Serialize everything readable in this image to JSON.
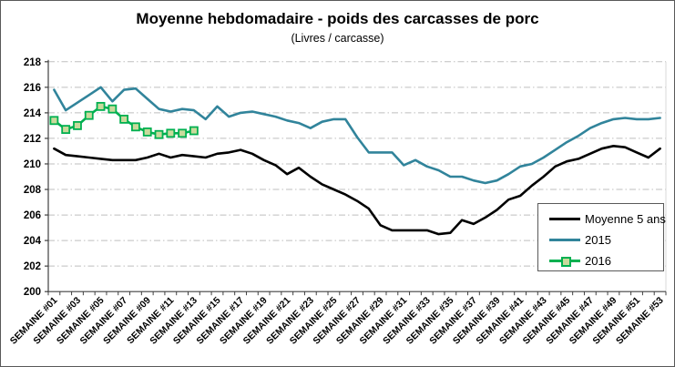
{
  "chart_data": {
    "type": "line",
    "title": "Moyenne hebdomadaire - poids des carcasses de porc",
    "subtitle": "(Livres / carcasse)",
    "xlabel": "",
    "ylabel": "",
    "weeks": 53,
    "x_tick_labels": [
      "SEMAINE #01",
      "SEMAINE #03",
      "SEMAINE #05",
      "SEMAINE #07",
      "SEMAINE #09",
      "SEMAINE #11",
      "SEMAINE #13",
      "SEMAINE #15",
      "SEMAINE #17",
      "SEMAINE #19",
      "SEMAINE #21",
      "SEMAINE #23",
      "SEMAINE #25",
      "SEMAINE #27",
      "SEMAINE #29",
      "SEMAINE #31",
      "SEMAINE #33",
      "SEMAINE #35",
      "SEMAINE #37",
      "SEMAINE #39",
      "SEMAINE #41",
      "SEMAINE #43",
      "SEMAINE #45",
      "SEMAINE #47",
      "SEMAINE #49",
      "SEMAINE #51",
      "SEMAINE #53"
    ],
    "y_ticks": [
      200,
      202,
      204,
      206,
      208,
      210,
      212,
      214,
      216,
      218
    ],
    "ylim": [
      200,
      218
    ],
    "grid": "horizontal dash-dot",
    "legend_position": "inside bottom-right",
    "series": [
      {
        "name": "Moyenne 5 ans",
        "color": "#000000",
        "marker": "none",
        "values": [
          211.2,
          210.7,
          210.6,
          210.5,
          210.4,
          210.3,
          210.3,
          210.3,
          210.5,
          210.8,
          210.5,
          210.7,
          210.6,
          210.5,
          210.8,
          210.9,
          211.1,
          210.8,
          210.3,
          209.9,
          209.2,
          209.7,
          209.0,
          208.4,
          208.0,
          207.6,
          207.1,
          206.5,
          205.2,
          204.8,
          204.8,
          204.8,
          204.8,
          204.5,
          204.6,
          205.6,
          205.3,
          205.8,
          206.4,
          207.2,
          207.5,
          208.3,
          209.0,
          209.8,
          210.2,
          210.4,
          210.8,
          211.2,
          211.4,
          211.3,
          210.9,
          210.5,
          211.2
        ]
      },
      {
        "name": "2015",
        "color": "#31849B",
        "marker": "none",
        "values": [
          215.8,
          214.2,
          214.8,
          215.4,
          216.0,
          214.9,
          215.8,
          215.9,
          215.1,
          214.3,
          214.1,
          214.3,
          214.2,
          213.5,
          214.5,
          213.7,
          214.0,
          214.1,
          213.9,
          213.7,
          213.4,
          213.2,
          212.8,
          213.3,
          213.5,
          213.5,
          212.1,
          210.9,
          210.9,
          210.9,
          209.9,
          210.3,
          209.8,
          209.5,
          209.0,
          209.0,
          208.7,
          208.5,
          208.7,
          209.2,
          209.8,
          210.0,
          210.5,
          211.1,
          211.7,
          212.2,
          212.8,
          213.2,
          213.5,
          213.6,
          213.5,
          213.5,
          213.6
        ]
      },
      {
        "name": "2016",
        "color": "#00B050",
        "marker": "square",
        "marker_fill": "#C9DA9C",
        "values": [
          213.4,
          212.7,
          213.0,
          213.8,
          214.5,
          214.3,
          213.5,
          212.9,
          212.5,
          212.3,
          212.4,
          212.4,
          212.6
        ]
      }
    ],
    "colors": {
      "gridline": "#BFBFBF",
      "axis": "#404040",
      "plot_right_border": "#D9D9D9",
      "legend_border": "#595959",
      "text": "#000000"
    }
  }
}
